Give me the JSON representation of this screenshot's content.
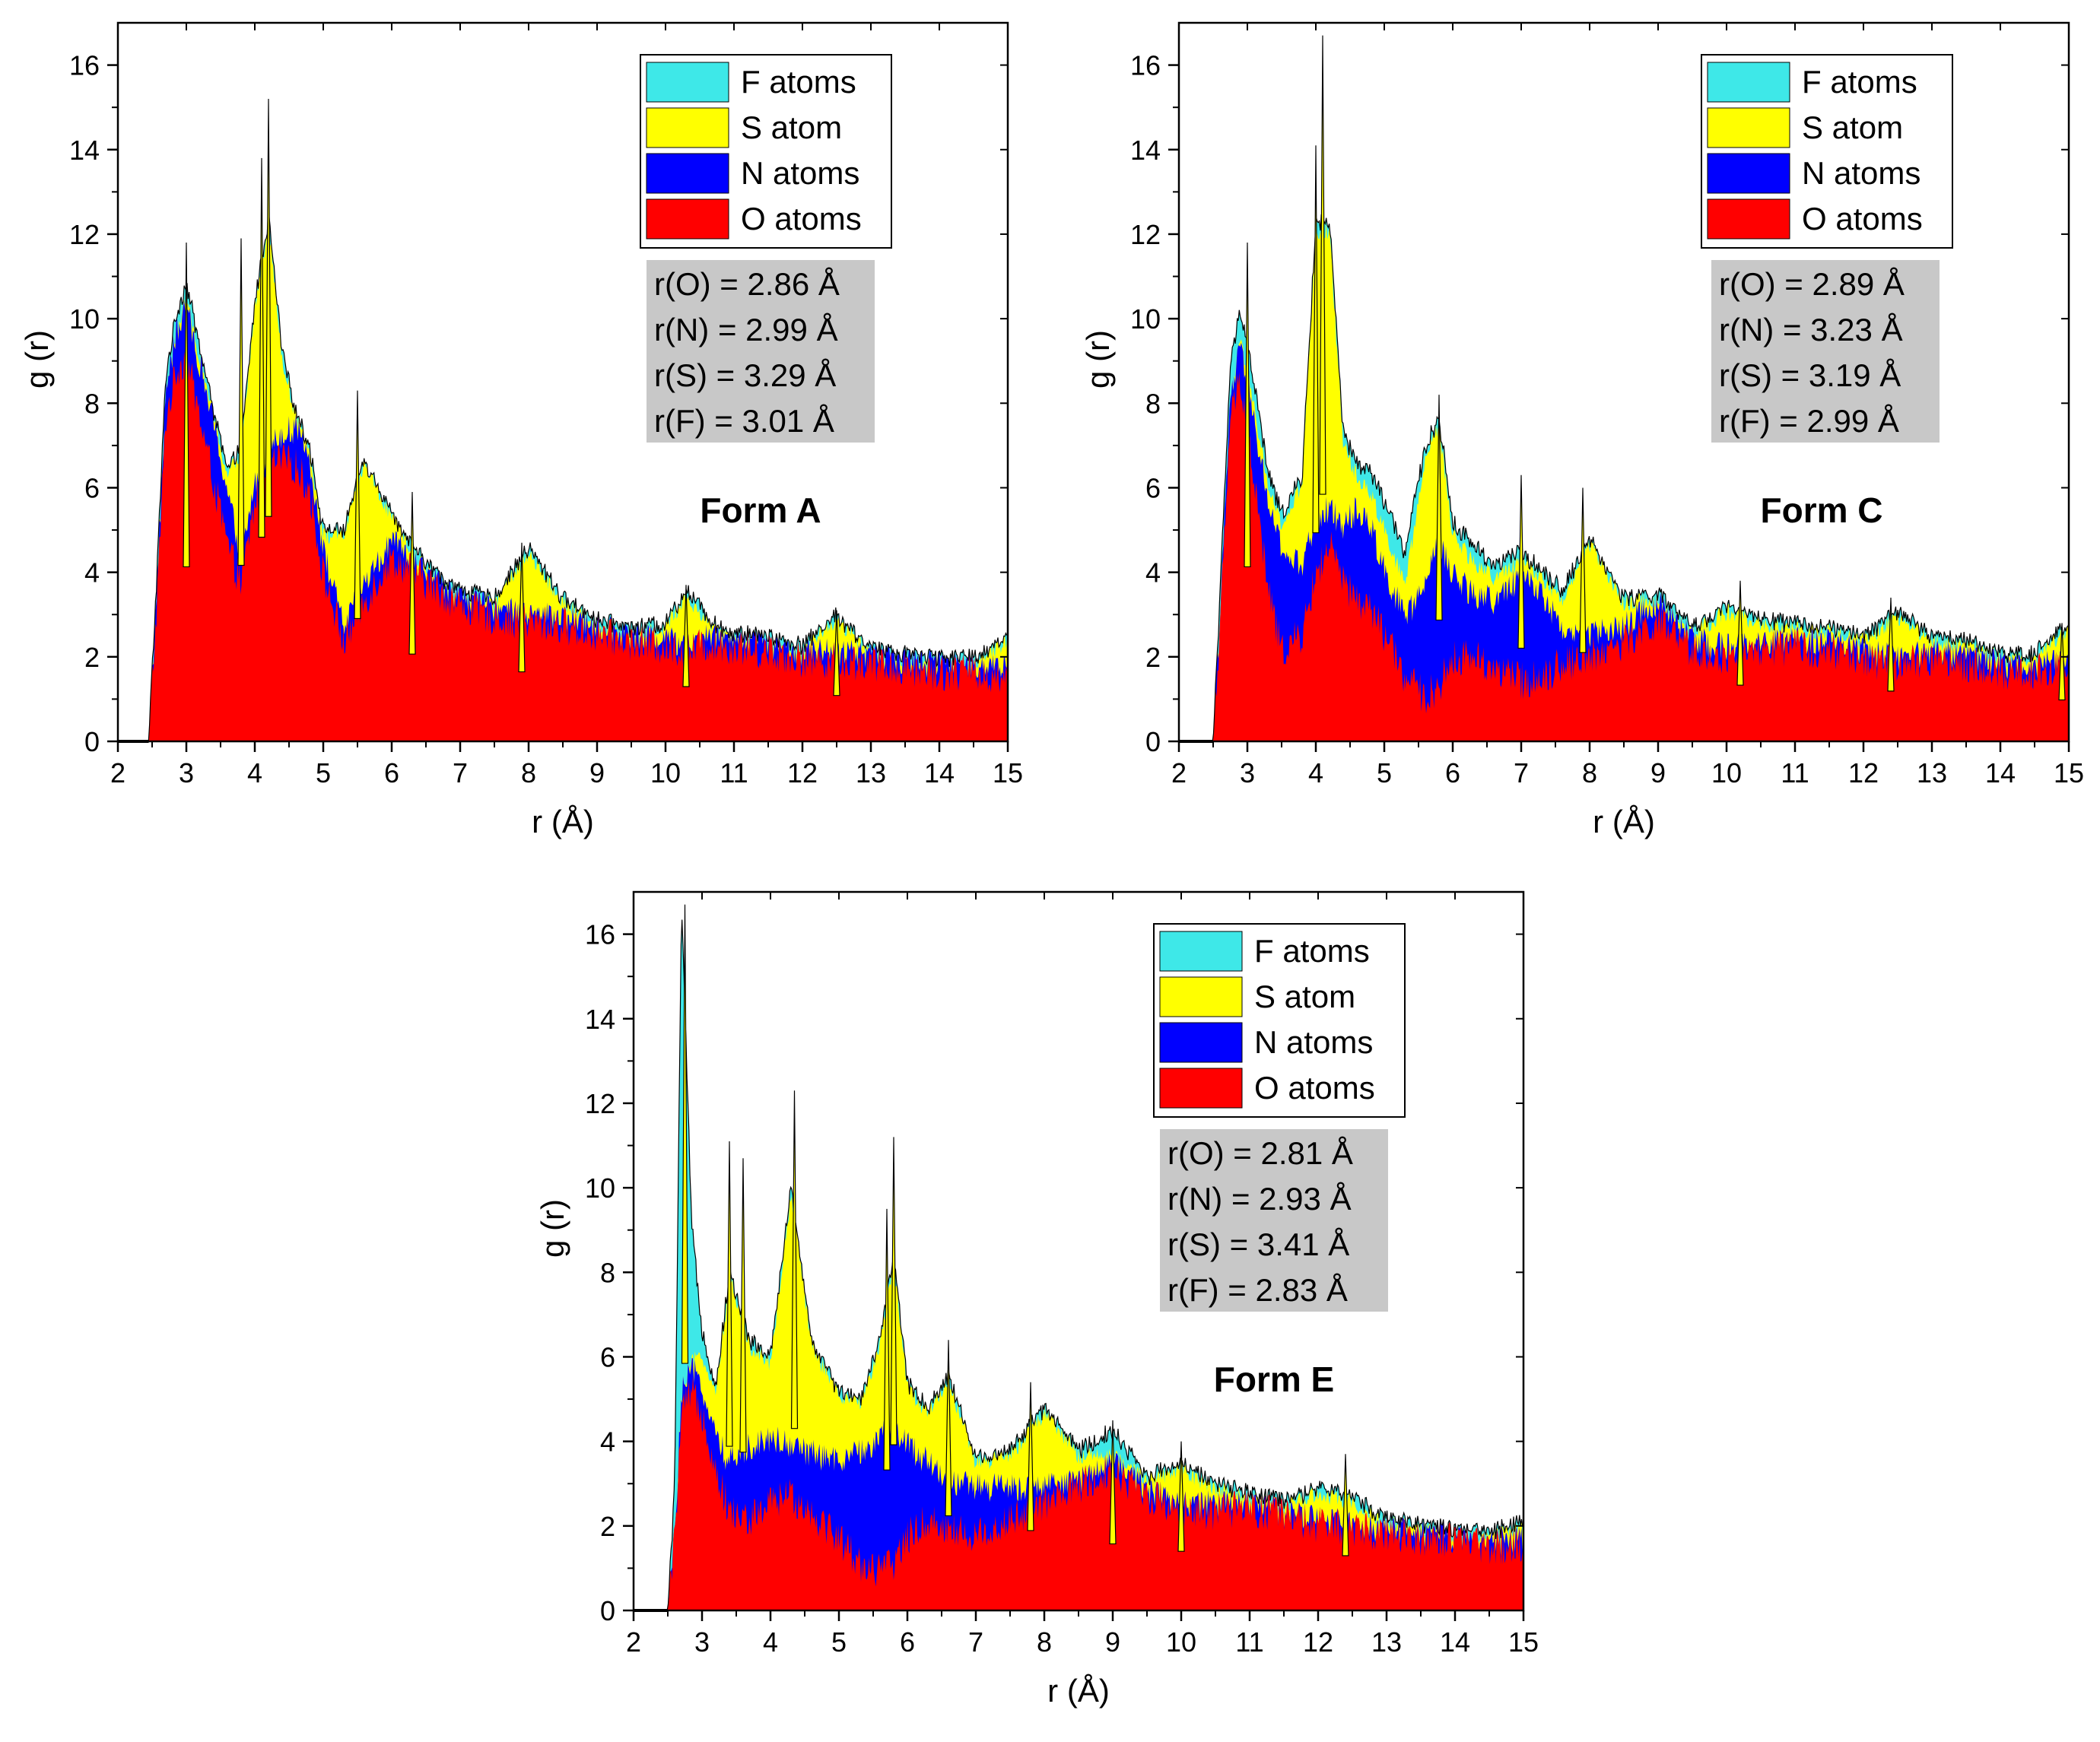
{
  "figure": {
    "legend_colors": {
      "F": "#3ee8e8",
      "S": "#ffff00",
      "N": "#0000ff",
      "O": "#ff0000"
    },
    "stat_box_color": "#c8c8c8"
  },
  "chart_data": [
    {
      "id": "form-a",
      "type": "area",
      "title": "Form A",
      "xlabel": "r (Å)",
      "ylabel": "g (r)",
      "xlim": [
        2,
        15
      ],
      "ylim": [
        0,
        17
      ],
      "xticks": [
        "2",
        "3",
        "4",
        "5",
        "6",
        "7",
        "8",
        "9",
        "10",
        "11",
        "12",
        "13",
        "14",
        "15"
      ],
      "yticks": [
        "0",
        "2",
        "4",
        "6",
        "8",
        "10",
        "12",
        "14",
        "16"
      ],
      "legend": [
        {
          "label": "F atoms",
          "color": "#3ee8e8"
        },
        {
          "label": "S atom",
          "color": "#ffff00"
        },
        {
          "label": "N atoms",
          "color": "#0000ff"
        },
        {
          "label": "O atoms",
          "color": "#ff0000"
        }
      ],
      "stats": [
        "r(O) = 2.86 Å",
        "r(N) = 2.99 Å",
        "r(S) = 3.29 Å",
        "r(F) = 3.01 Å"
      ],
      "series_order": [
        "O",
        "N",
        "S",
        "F"
      ],
      "x": [
        2.0,
        2.45,
        2.55,
        2.7,
        2.85,
        3.0,
        3.2,
        3.4,
        3.6,
        3.8,
        4.0,
        4.2,
        4.4,
        4.6,
        4.8,
        5.0,
        5.3,
        5.6,
        6.0,
        6.3,
        6.7,
        7.0,
        7.5,
        8.0,
        8.5,
        9.0,
        9.5,
        10.0,
        10.3,
        10.7,
        11.0,
        11.5,
        12.0,
        12.5,
        13.0,
        13.5,
        14.0,
        14.5,
        15.0
      ],
      "O": [
        0,
        0,
        2.5,
        7.5,
        8.6,
        9.0,
        7.5,
        6.0,
        4.5,
        3.6,
        5.5,
        6.4,
        6.5,
        6.4,
        5.8,
        3.8,
        2.2,
        3.2,
        4.2,
        3.9,
        3.4,
        3.1,
        2.8,
        2.7,
        2.6,
        2.4,
        2.2,
        2.1,
        2.0,
        2.2,
        2.1,
        2.0,
        1.8,
        1.8,
        1.7,
        1.6,
        1.5,
        1.5,
        1.4
      ],
      "N": [
        0,
        0,
        2.8,
        8.2,
        9.5,
        10.2,
        8.8,
        7.4,
        5.8,
        4.2,
        6.0,
        6.8,
        7.2,
        7.3,
        6.6,
        4.4,
        2.6,
        3.6,
        4.6,
        4.2,
        3.6,
        3.3,
        3.0,
        2.9,
        2.8,
        2.6,
        2.4,
        2.3,
        2.2,
        2.4,
        2.3,
        2.2,
        2.0,
        2.0,
        1.9,
        1.8,
        1.7,
        1.7,
        1.6
      ],
      "S": [
        0,
        0,
        2.8,
        8.2,
        9.6,
        10.4,
        9.0,
        7.6,
        6.2,
        6.8,
        10.2,
        12.2,
        9.0,
        7.6,
        6.8,
        4.8,
        4.8,
        6.5,
        5.2,
        4.4,
        3.7,
        3.4,
        3.2,
        4.4,
        3.2,
        2.7,
        2.5,
        2.6,
        3.4,
        2.6,
        2.4,
        2.3,
        2.1,
        2.8,
        2.0,
        1.9,
        1.8,
        1.8,
        2.3
      ],
      "F": [
        0,
        0,
        3.2,
        8.6,
        10.0,
        10.8,
        9.2,
        7.7,
        6.3,
        6.9,
        10.3,
        12.3,
        9.1,
        7.7,
        6.9,
        4.9,
        4.9,
        6.6,
        5.3,
        4.5,
        3.8,
        3.5,
        3.3,
        4.5,
        3.3,
        2.8,
        2.6,
        2.7,
        3.5,
        2.7,
        2.5,
        2.4,
        2.2,
        2.9,
        2.1,
        2.0,
        1.9,
        1.9,
        2.4
      ],
      "peaks": [
        {
          "x": 3.0,
          "y": 11.8
        },
        {
          "x": 4.1,
          "y": 13.8
        },
        {
          "x": 4.2,
          "y": 15.2
        },
        {
          "x": 3.8,
          "y": 11.9
        },
        {
          "x": 5.5,
          "y": 8.3
        },
        {
          "x": 6.3,
          "y": 5.9
        },
        {
          "x": 7.9,
          "y": 4.7
        },
        {
          "x": 10.3,
          "y": 3.7
        },
        {
          "x": 12.5,
          "y": 3.1
        }
      ]
    },
    {
      "id": "form-c",
      "type": "area",
      "title": "Form C",
      "xlabel": "r (Å)",
      "ylabel": "g (r)",
      "xlim": [
        2,
        15
      ],
      "ylim": [
        0,
        17
      ],
      "xticks": [
        "2",
        "3",
        "4",
        "5",
        "6",
        "7",
        "8",
        "9",
        "10",
        "11",
        "12",
        "13",
        "14",
        "15"
      ],
      "yticks": [
        "0",
        "2",
        "4",
        "6",
        "8",
        "10",
        "12",
        "14",
        "16"
      ],
      "legend": [
        {
          "label": "F atoms",
          "color": "#3ee8e8"
        },
        {
          "label": "S atom",
          "color": "#ffff00"
        },
        {
          "label": "N atoms",
          "color": "#0000ff"
        },
        {
          "label": "O atoms",
          "color": "#ff0000"
        }
      ],
      "stats": [
        "r(O) = 2.89 Å",
        "r(N) = 3.23 Å",
        "r(S) = 3.19 Å",
        "r(F) = 2.99 Å"
      ],
      "series_order": [
        "O",
        "N",
        "S",
        "F"
      ],
      "x": [
        2.0,
        2.5,
        2.6,
        2.75,
        2.9,
        3.1,
        3.3,
        3.5,
        3.8,
        4.0,
        4.2,
        4.4,
        4.6,
        4.8,
        5.0,
        5.3,
        5.6,
        5.8,
        6.0,
        6.3,
        6.6,
        7.0,
        7.3,
        7.6,
        8.0,
        8.5,
        9.0,
        9.5,
        10.0,
        10.5,
        11.0,
        11.5,
        12.0,
        12.5,
        13.0,
        13.5,
        14.0,
        14.5,
        15.0
      ],
      "O": [
        0,
        0,
        2.5,
        7.5,
        8.5,
        6.0,
        3.5,
        2.0,
        2.4,
        3.8,
        4.5,
        3.6,
        3.2,
        3.0,
        2.4,
        1.4,
        0.9,
        1.2,
        1.8,
        1.9,
        1.6,
        1.3,
        1.4,
        1.7,
        1.9,
        2.2,
        2.7,
        2.0,
        1.8,
        2.0,
        2.1,
        2.0,
        1.8,
        1.7,
        1.8,
        1.7,
        1.5,
        1.5,
        1.6
      ],
      "N": [
        0,
        0,
        2.8,
        8.0,
        9.2,
        7.4,
        5.6,
        4.4,
        4.0,
        5.2,
        5.4,
        5.0,
        5.4,
        5.0,
        4.0,
        2.8,
        3.6,
        4.6,
        3.8,
        3.4,
        3.2,
        3.8,
        3.4,
        2.6,
        2.4,
        2.6,
        3.2,
        2.3,
        2.1,
        2.2,
        2.3,
        2.2,
        2.0,
        1.9,
        2.0,
        1.9,
        1.7,
        1.7,
        1.8
      ],
      "S": [
        0,
        0,
        2.8,
        8.0,
        9.4,
        7.8,
        6.0,
        5.0,
        6.0,
        12.0,
        12.0,
        7.0,
        6.2,
        5.8,
        5.0,
        3.6,
        6.6,
        7.4,
        4.8,
        4.2,
        3.8,
        4.2,
        3.8,
        3.3,
        4.6,
        3.2,
        3.3,
        2.5,
        3.0,
        2.7,
        2.6,
        2.5,
        2.3,
        2.9,
        2.3,
        2.2,
        1.9,
        1.9,
        2.6
      ],
      "F": [
        0,
        0,
        3.4,
        8.8,
        10.2,
        8.4,
        6.3,
        5.3,
        6.2,
        12.2,
        12.2,
        7.2,
        6.5,
        6.3,
        5.6,
        4.4,
        6.9,
        7.6,
        5.1,
        4.6,
        4.1,
        4.4,
        4.0,
        3.5,
        4.7,
        3.3,
        3.4,
        2.6,
        3.1,
        2.8,
        2.7,
        2.6,
        2.4,
        3.0,
        2.4,
        2.3,
        2.0,
        2.0,
        2.7
      ],
      "peaks": [
        {
          "x": 3.0,
          "y": 11.8
        },
        {
          "x": 4.0,
          "y": 14.1
        },
        {
          "x": 4.1,
          "y": 16.7
        },
        {
          "x": 5.8,
          "y": 8.2
        },
        {
          "x": 7.0,
          "y": 6.3
        },
        {
          "x": 7.9,
          "y": 6.0
        },
        {
          "x": 10.2,
          "y": 3.8
        },
        {
          "x": 12.4,
          "y": 3.4
        },
        {
          "x": 14.9,
          "y": 2.8
        }
      ]
    },
    {
      "id": "form-e",
      "type": "area",
      "title": "Form E",
      "xlabel": "r (Å)",
      "ylabel": "g (r)",
      "xlim": [
        2,
        15
      ],
      "ylim": [
        0,
        17
      ],
      "xticks": [
        "2",
        "3",
        "4",
        "5",
        "6",
        "7",
        "8",
        "9",
        "10",
        "11",
        "12",
        "13",
        "14",
        "15"
      ],
      "yticks": [
        "0",
        "2",
        "4",
        "6",
        "8",
        "10",
        "12",
        "14",
        "16"
      ],
      "legend": [
        {
          "label": "F atoms",
          "color": "#3ee8e8"
        },
        {
          "label": "S atom",
          "color": "#ffff00"
        },
        {
          "label": "N atoms",
          "color": "#0000ff"
        },
        {
          "label": "O atoms",
          "color": "#ff0000"
        }
      ],
      "stats": [
        "r(O) = 2.81 Å",
        "r(N) = 2.93 Å",
        "r(S) = 3.41 Å",
        "r(F) = 2.83 Å"
      ],
      "series_order": [
        "O",
        "N",
        "S",
        "F"
      ],
      "x": [
        2.0,
        2.5,
        2.6,
        2.7,
        2.85,
        3.0,
        3.2,
        3.4,
        3.7,
        4.0,
        4.3,
        4.6,
        5.0,
        5.3,
        5.6,
        5.8,
        6.0,
        6.3,
        6.6,
        7.0,
        7.5,
        8.0,
        8.5,
        9.0,
        9.5,
        10.0,
        10.5,
        11.0,
        11.5,
        12.0,
        12.5,
        13.0,
        13.5,
        14.0,
        14.5,
        15.0
      ],
      "O": [
        0,
        0,
        1.5,
        4.5,
        5.0,
        4.6,
        3.2,
        2.2,
        2.0,
        2.4,
        2.6,
        2.2,
        1.6,
        1.0,
        0.8,
        1.0,
        1.6,
        2.0,
        1.8,
        1.6,
        2.0,
        2.4,
        2.8,
        3.2,
        2.6,
        2.3,
        2.2,
        2.3,
        2.1,
        1.9,
        1.8,
        1.7,
        1.6,
        1.5,
        1.4,
        1.4
      ],
      "N": [
        0,
        0,
        1.6,
        5.0,
        5.6,
        5.2,
        4.0,
        3.4,
        3.8,
        4.0,
        3.8,
        3.6,
        3.4,
        3.6,
        4.0,
        4.2,
        3.8,
        3.4,
        3.0,
        2.8,
        2.8,
        2.8,
        2.9,
        3.4,
        2.7,
        2.4,
        2.4,
        2.4,
        2.2,
        2.0,
        1.9,
        1.8,
        1.7,
        1.6,
        1.5,
        1.5
      ],
      "S": [
        0,
        0,
        1.6,
        5.0,
        5.8,
        6.0,
        5.0,
        7.8,
        6.2,
        5.8,
        9.8,
        6.2,
        5.0,
        4.8,
        6.2,
        8.2,
        5.2,
        4.6,
        5.4,
        3.4,
        3.6,
        4.6,
        3.6,
        3.6,
        3.0,
        3.3,
        2.8,
        2.6,
        2.4,
        2.7,
        2.5,
        2.0,
        1.9,
        1.7,
        1.7,
        1.9
      ],
      "F": [
        0,
        0,
        2.8,
        16.6,
        9.0,
        6.6,
        5.2,
        7.9,
        6.3,
        5.9,
        9.9,
        6.3,
        5.1,
        4.9,
        6.3,
        8.3,
        5.3,
        4.7,
        5.5,
        3.5,
        3.7,
        4.7,
        3.7,
        4.2,
        3.1,
        3.4,
        2.9,
        2.7,
        2.5,
        2.8,
        2.6,
        2.1,
        2.0,
        1.8,
        1.8,
        2.0
      ],
      "peaks": [
        {
          "x": 2.75,
          "y": 16.7
        },
        {
          "x": 3.4,
          "y": 11.1
        },
        {
          "x": 3.6,
          "y": 10.7
        },
        {
          "x": 4.35,
          "y": 12.3
        },
        {
          "x": 5.8,
          "y": 11.2
        },
        {
          "x": 5.7,
          "y": 9.5
        },
        {
          "x": 6.6,
          "y": 6.4
        },
        {
          "x": 7.8,
          "y": 5.4
        },
        {
          "x": 9.0,
          "y": 4.5
        },
        {
          "x": 10.0,
          "y": 4.0
        },
        {
          "x": 12.4,
          "y": 3.7
        }
      ]
    }
  ]
}
